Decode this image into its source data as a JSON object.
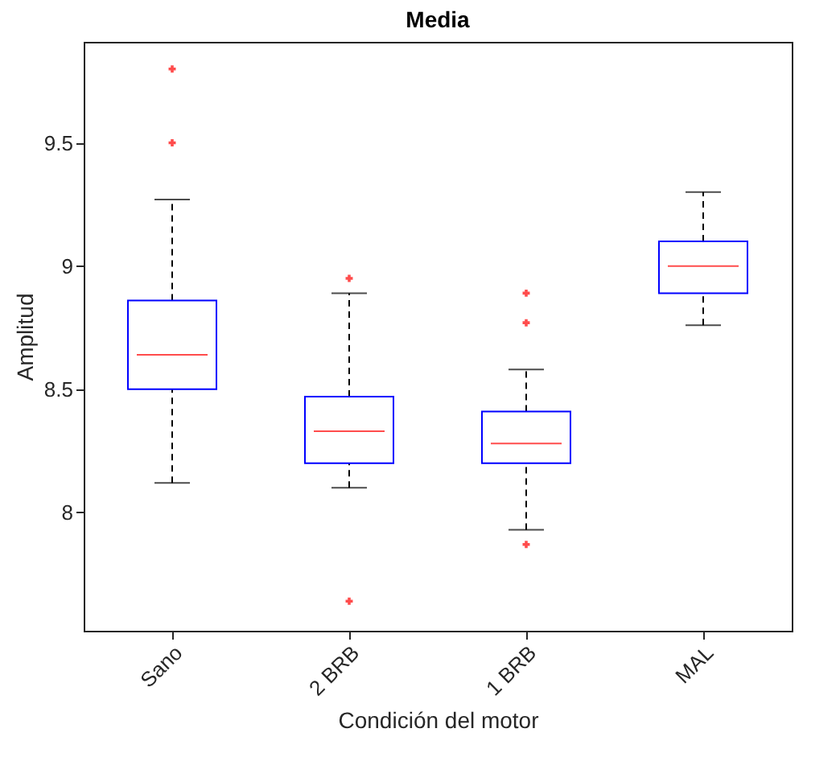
{
  "chart_data": {
    "type": "box",
    "title": "Media",
    "xlabel": "Condición del motor",
    "ylabel": "Amplitud",
    "categories": [
      "Sano",
      "2 BRB",
      "1 BRB",
      "MAL"
    ],
    "boxes": [
      {
        "low": 8.12,
        "q1": 8.5,
        "median": 8.64,
        "q3": 8.86,
        "high": 9.27,
        "outliers": [
          9.5,
          9.8
        ]
      },
      {
        "low": 8.1,
        "q1": 8.2,
        "median": 8.33,
        "q3": 8.47,
        "high": 8.89,
        "outliers": [
          8.95,
          7.64
        ]
      },
      {
        "low": 7.93,
        "q1": 8.2,
        "median": 8.28,
        "q3": 8.41,
        "high": 8.58,
        "outliers": [
          8.89,
          8.77,
          7.87
        ]
      },
      {
        "low": 8.76,
        "q1": 8.89,
        "median": 9.0,
        "q3": 9.1,
        "high": 9.3
      }
    ],
    "ylim": [
      7.52,
      9.91
    ],
    "yticks": [
      8,
      8.5,
      9,
      9.5
    ]
  }
}
